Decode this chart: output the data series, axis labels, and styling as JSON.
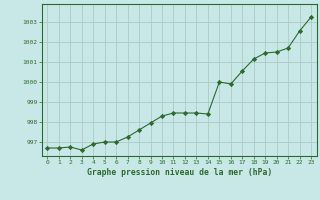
{
  "x": [
    0,
    1,
    2,
    3,
    4,
    5,
    6,
    7,
    8,
    9,
    10,
    11,
    12,
    13,
    14,
    15,
    16,
    17,
    18,
    19,
    20,
    21,
    22,
    23
  ],
  "y": [
    996.7,
    996.7,
    996.75,
    996.6,
    996.9,
    997.0,
    997.0,
    997.25,
    997.6,
    997.95,
    998.3,
    998.45,
    998.45,
    998.45,
    998.4,
    1000.0,
    999.9,
    1000.55,
    1001.15,
    1001.45,
    1001.5,
    1001.7,
    1002.55,
    1003.25
  ],
  "line_color": "#2d6a2d",
  "marker": "D",
  "marker_size": 2.2,
  "bg_color": "#c8e8e8",
  "grid_color": "#b0c8c8",
  "xlabel": "Graphe pression niveau de la mer (hPa)",
  "xlabel_color": "#2d6a2d",
  "tick_color": "#2d6a2d",
  "ylim": [
    996.3,
    1003.9
  ],
  "yticks": [
    997,
    998,
    999,
    1000,
    1001,
    1002,
    1003
  ],
  "xlim": [
    -0.5,
    23.5
  ],
  "xticks": [
    0,
    1,
    2,
    3,
    4,
    5,
    6,
    7,
    8,
    9,
    10,
    11,
    12,
    13,
    14,
    15,
    16,
    17,
    18,
    19,
    20,
    21,
    22,
    23
  ]
}
